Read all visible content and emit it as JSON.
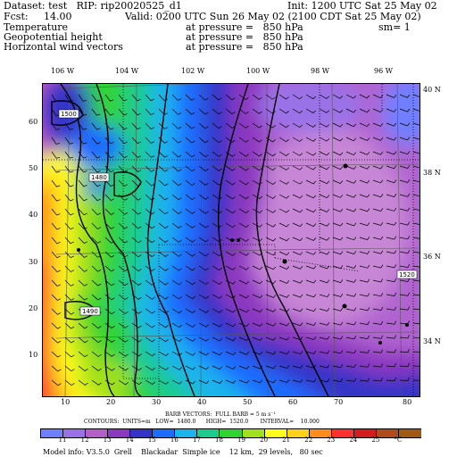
{
  "header": {
    "line1_left": "Dataset: test   RIP: rip20020525_d1",
    "line1_right": "Init: 1200 UTC Sat 25 May 02",
    "line2_left": "Fcst:     14.00",
    "line2_right": "Valid: 0200 UTC Sun 26 May 02 (2100 CDT Sat 25 May 02)",
    "line3_left": "Temperature",
    "line3_mid": "at pressure =   850 hPa",
    "line3_right": "sm= 1",
    "line4_left": "Geopotential height",
    "line4_mid": "at pressure =   850 hPa",
    "line5_left": "Horizontal wind vectors",
    "line5_mid": "at pressure =   850 hPa"
  },
  "map": {
    "top_lon_labels": [
      "106 W",
      "104 W",
      "102 W",
      "100 W",
      "98 W",
      "96 W"
    ],
    "right_lat_labels": [
      "40 N",
      "38 N",
      "36 N",
      "34 N"
    ],
    "left_y_ticks": [
      "60",
      "50",
      "40",
      "30",
      "20",
      "10"
    ],
    "bottom_x_ticks": [
      "10",
      "20",
      "30",
      "40",
      "50",
      "60",
      "70",
      "80"
    ],
    "contour_labels": [
      "1500",
      "1480",
      "1490",
      "1520"
    ]
  },
  "footer": {
    "barb_line": "BARB VECTORS:  FULL BARB = 5 m s⁻¹",
    "contour_line": "CONTOURS:  UNITS=m   LOW=  1480.0      HIGH=  1520.0       INTERVAL=    10.000",
    "colorbar_labels": [
      "11",
      "12",
      "13",
      "14",
      "15",
      "16",
      "17",
      "18",
      "19",
      "20",
      "21",
      "22",
      "23",
      "24",
      "25",
      "°C"
    ],
    "colorbar_colors": [
      "#6f7fff",
      "#9a72e8",
      "#b45ec8",
      "#8c38c0",
      "#3434c8",
      "#1c6cff",
      "#1cb4ec",
      "#1ccc8c",
      "#30d430",
      "#a0e01c",
      "#ffff1c",
      "#ffd11c",
      "#ff8c1c",
      "#ff3030",
      "#d41c1c",
      "#b04c1c",
      "#a05a14"
    ],
    "model_info": "Model info: V3.5.0  Grell    Blackadar  Simple ice    12 km,  29 levels,   80 sec"
  }
}
